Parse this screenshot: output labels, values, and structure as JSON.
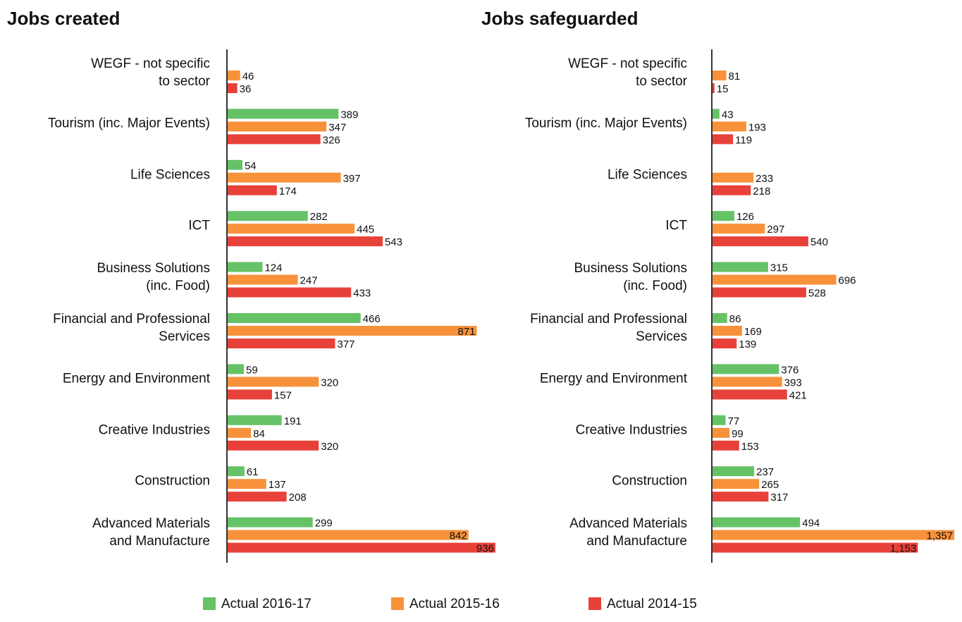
{
  "chart_data": [
    {
      "type": "bar",
      "orientation": "horizontal",
      "title": "Jobs created",
      "categories": [
        "WEGF - not specific\nto sector",
        "Tourism (inc. Major Events)",
        "Life Sciences",
        "ICT",
        "Business Solutions\n(inc. Food)",
        "Financial and Professional\nServices",
        "Energy and Environment",
        "Creative Industries",
        "Construction",
        "Advanced Materials\nand Manufacture"
      ],
      "series": [
        {
          "name": "Actual 2016-17",
          "color": "#66c266",
          "values": [
            null,
            389,
            54,
            282,
            124,
            466,
            59,
            191,
            61,
            299
          ]
        },
        {
          "name": "Actual 2015-16",
          "color": "#f7923a",
          "values": [
            46,
            347,
            397,
            445,
            247,
            871,
            320,
            84,
            137,
            842
          ]
        },
        {
          "name": "Actual 2014-15",
          "color": "#e8413a",
          "values": [
            36,
            326,
            174,
            543,
            433,
            377,
            157,
            320,
            208,
            936
          ]
        }
      ],
      "xlim": [
        0,
        1000
      ]
    },
    {
      "type": "bar",
      "orientation": "horizontal",
      "title": "Jobs safeguarded",
      "categories": [
        "WEGF - not specific\nto sector",
        "Tourism (inc. Major Events)",
        "Life Sciences",
        "ICT",
        "Business Solutions\n(inc. Food)",
        "Financial and Professional\nServices",
        "Energy and Environment",
        "Creative Industries",
        "Construction",
        "Advanced Materials\nand Manufacture"
      ],
      "series": [
        {
          "name": "Actual 2016-17",
          "color": "#66c266",
          "values": [
            null,
            43,
            null,
            126,
            315,
            86,
            376,
            77,
            237,
            494
          ]
        },
        {
          "name": "Actual 2015-16",
          "color": "#f7923a",
          "values": [
            81,
            193,
            233,
            297,
            696,
            169,
            393,
            99,
            265,
            1357
          ],
          "value_labels": [
            "81",
            "193",
            "233",
            "297",
            "696",
            "169",
            "393",
            "99",
            "265",
            "1,357"
          ]
        },
        {
          "name": "Actual 2014-15",
          "color": "#e8413a",
          "values": [
            15,
            119,
            218,
            540,
            528,
            139,
            421,
            153,
            317,
            1153
          ],
          "value_labels": [
            "15",
            "119",
            "218",
            "540",
            "528",
            "139",
            "421",
            "153",
            "317",
            "1,153"
          ]
        }
      ],
      "xlim": [
        0,
        1400
      ]
    }
  ]
}
